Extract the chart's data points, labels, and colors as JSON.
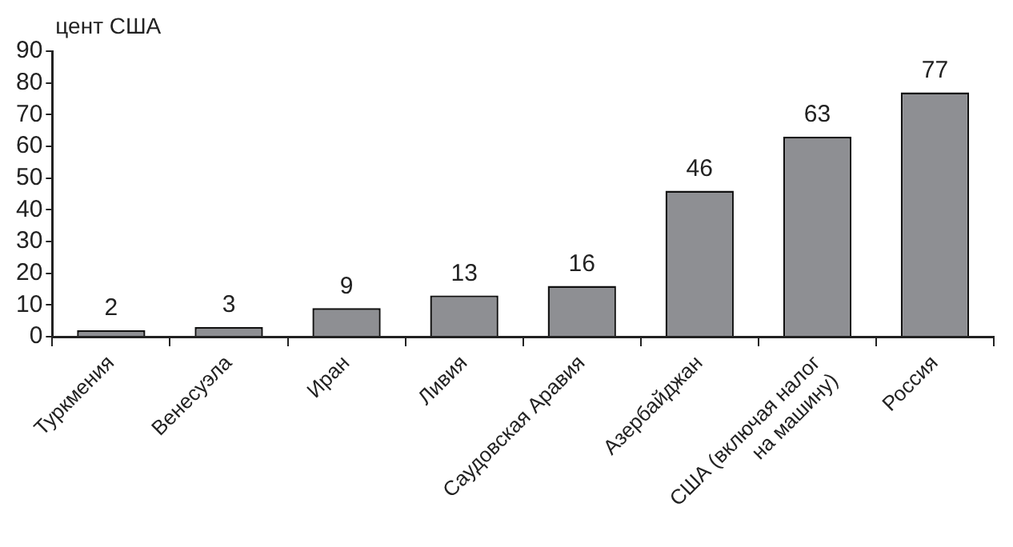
{
  "chart_data": {
    "type": "bar",
    "ylabel": "цент США",
    "categories": [
      "Туркмения",
      "Венесуэла",
      "Иран",
      "Ливия",
      "Саудовская Аравия",
      "Азербайджан",
      "США (включая налог на машину)",
      "Россия"
    ],
    "values": [
      2,
      3,
      9,
      13,
      16,
      46,
      63,
      77
    ],
    "color": "#8e8f93",
    "ylim": [
      0,
      90
    ],
    "yticks": [
      0,
      10,
      20,
      30,
      40,
      50,
      60,
      70,
      80,
      90
    ],
    "grid": false,
    "data_labels": true
  }
}
